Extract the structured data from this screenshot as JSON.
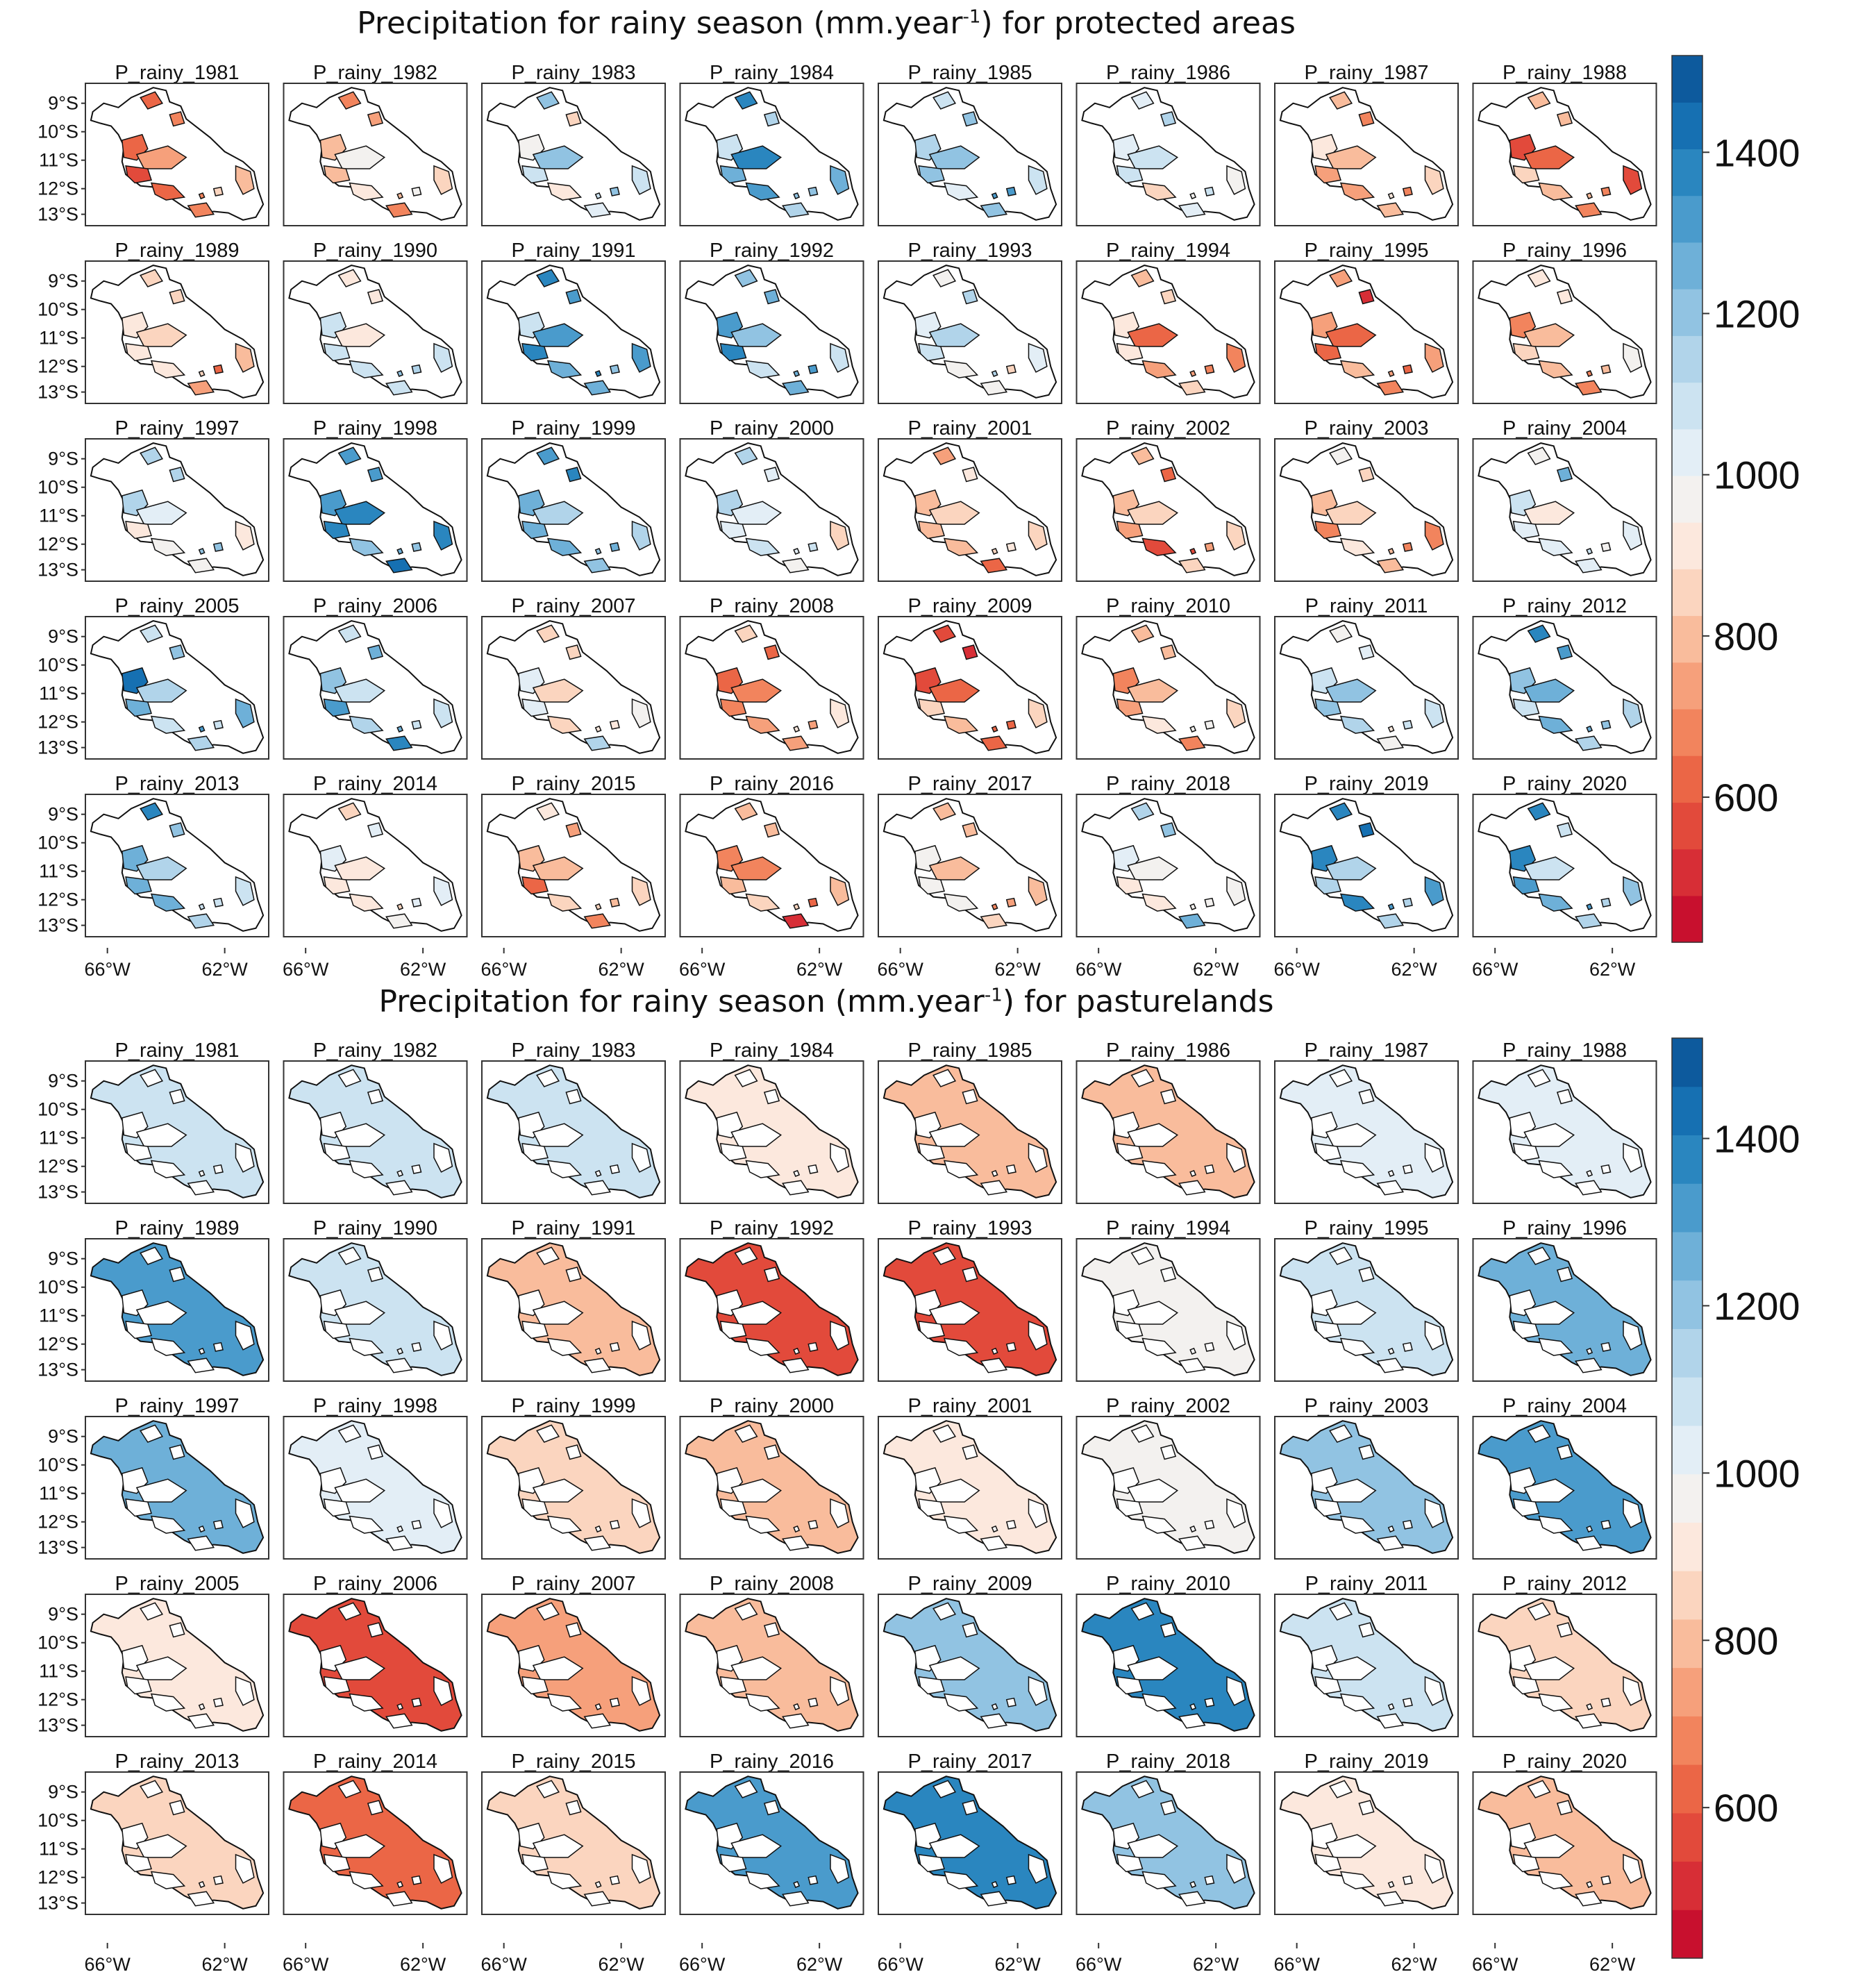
{
  "colorbar": {
    "ticks": [
      600,
      800,
      1000,
      1200,
      1400
    ],
    "colors": [
      "#c8102e",
      "#d72e36",
      "#e24a3b",
      "#eb6646",
      "#f2845d",
      "#f6a07b",
      "#f9bc9c",
      "#fbd5bf",
      "#fce8dd",
      "#f3f1ef",
      "#e3eef6",
      "#cce3f1",
      "#b1d4ea",
      "#91c3e2",
      "#6eb0d8",
      "#4a9bcc",
      "#2a86bf",
      "#1670b2",
      "#0d5a9d"
    ]
  },
  "axes": {
    "lat_labels": [
      "9°S",
      "10°S",
      "11°S",
      "12°S",
      "13°S"
    ],
    "lon_labels": [
      "66°W",
      "62°W"
    ]
  },
  "sections": [
    {
      "title_prefix": "Precipitation for rainy season (mm.year",
      "title_sup": "-1",
      "title_suffix": ") for protected areas",
      "panel_prefix": "P_rainy_",
      "years": [
        1981,
        1982,
        1983,
        1984,
        1985,
        1986,
        1987,
        1988,
        1989,
        1990,
        1991,
        1992,
        1993,
        1994,
        1995,
        1996,
        1997,
        1998,
        1999,
        2000,
        2001,
        2002,
        2003,
        2004,
        2005,
        2006,
        2007,
        2008,
        2009,
        2010,
        2011,
        2012,
        2013,
        2014,
        2015,
        2016,
        2017,
        2018,
        2019,
        2020
      ]
    },
    {
      "title_prefix": "Precipitation for rainy season (mm.year",
      "title_sup": "-1",
      "title_suffix": ") for pasturelands",
      "panel_prefix": "P_rainy_",
      "years": [
        1981,
        1982,
        1983,
        1984,
        1985,
        1986,
        1987,
        1988,
        1989,
        1990,
        1991,
        1992,
        1993,
        1994,
        1995,
        1996,
        1997,
        1998,
        1999,
        2000,
        2001,
        2002,
        2003,
        2004,
        2005,
        2006,
        2007,
        2008,
        2009,
        2010,
        2011,
        2012,
        2013,
        2014,
        2015,
        2016,
        2017,
        2018,
        2019,
        2020
      ]
    }
  ]
}
